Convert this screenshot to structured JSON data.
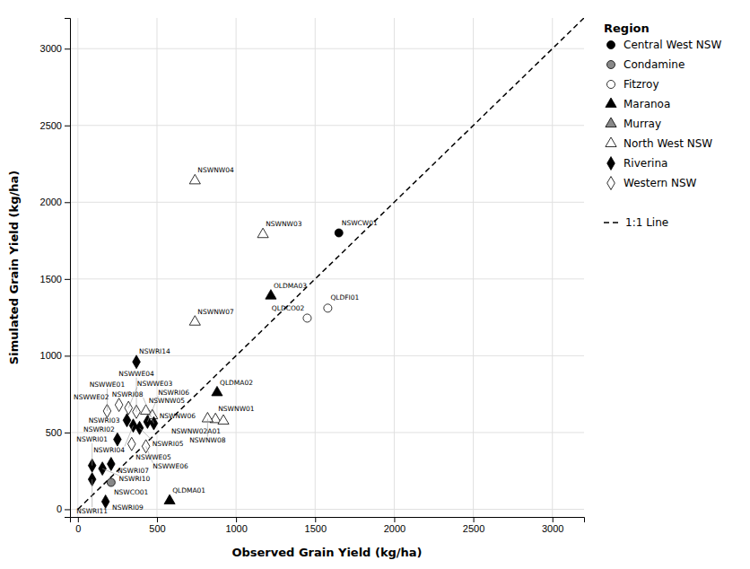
{
  "chart_data": {
    "type": "scatter",
    "xlabel": "Observed Grain Yield (kg/ha)",
    "ylabel": "Simulated Grain Yield (kg/ha)",
    "xlim": [
      -50,
      3200
    ],
    "ylim": [
      -50,
      3200
    ],
    "xticks": [
      0,
      500,
      1000,
      1500,
      2000,
      2500,
      3000
    ],
    "yticks": [
      0,
      500,
      1000,
      1500,
      2000,
      2500,
      3000
    ],
    "grid": true,
    "legend_title": "Region",
    "series": [
      {
        "name": "Central West NSW",
        "type": "scatter",
        "marker": "circle",
        "color": "#000000",
        "x": [
          1650
        ],
        "values": [
          1800
        ],
        "labels": [
          "NSWCW01"
        ]
      },
      {
        "name": "Condamine",
        "type": "scatter",
        "marker": "circle",
        "color": "#888888",
        "x": [
          210
        ],
        "values": [
          175
        ],
        "labels": [
          "NSWCO01"
        ]
      },
      {
        "name": "Fitzroy",
        "type": "scatter",
        "marker": "circle",
        "color": "#ffffff",
        "x": [
          1580,
          1450
        ],
        "values": [
          1310,
          1245
        ],
        "labels": [
          "QLDFI01",
          "QLDCO02"
        ]
      },
      {
        "name": "Maranoa",
        "type": "scatter",
        "marker": "triangle",
        "color": "#000000",
        "x": [
          1220,
          880,
          580
        ],
        "values": [
          1390,
          760,
          55
        ],
        "labels": [
          "OLDMA03",
          "QLDMA02",
          "QLDMA01"
        ]
      },
      {
        "name": "Murray",
        "type": "scatter",
        "marker": "triangle",
        "color": "#888888",
        "x": [],
        "values": [],
        "labels": []
      },
      {
        "name": "North West NSW",
        "type": "scatter",
        "marker": "triangle",
        "color": "#ffffff",
        "x": [
          740,
          1170,
          740,
          870,
          920,
          430,
          470,
          820
        ],
        "values": [
          2140,
          1790,
          1220,
          585,
          575,
          640,
          610,
          590
        ],
        "labels": [
          "NSWNW04",
          "NSWNW03",
          "NSWNW07",
          "NSWNW01",
          "NSWNW02A01",
          "NSWNW05",
          "NSWNW06",
          "NSWNW08"
        ]
      },
      {
        "name": "Riverina",
        "type": "scatter",
        "marker": "diamond",
        "color": "#000000",
        "x": [
          370,
          310,
          350,
          390,
          440,
          480,
          90,
          250,
          210,
          155,
          90,
          175
        ],
        "values": [
          960,
          580,
          545,
          530,
          570,
          560,
          285,
          455,
          295,
          265,
          195,
          50
        ],
        "labels": [
          "NSWRI14",
          "NSWRI03",
          "NSWRI04",
          "NSWRI05",
          "NSWRI06",
          "NSWRI08",
          "NSWRI01",
          "NSWRI02",
          "NSWRI07",
          "NSWRI10",
          "NSWRI11",
          "NSWRI09"
        ]
      },
      {
        "name": "Western NSW",
        "type": "scatter",
        "marker": "diamond",
        "color": "#ffffff",
        "x": [
          185,
          260,
          320,
          370,
          340,
          430
        ],
        "values": [
          640,
          680,
          660,
          635,
          425,
          410
        ],
        "labels": [
          "NSWWE01",
          "NSWWE02",
          "NSWWE03",
          "NSWWE04",
          "NSWWE05",
          "NSWWE06"
        ]
      },
      {
        "name": "1:1 Line",
        "type": "line",
        "line_style": "dashed",
        "color": "#000000",
        "x": [
          0,
          3200
        ],
        "values": [
          0,
          3200
        ]
      }
    ]
  }
}
